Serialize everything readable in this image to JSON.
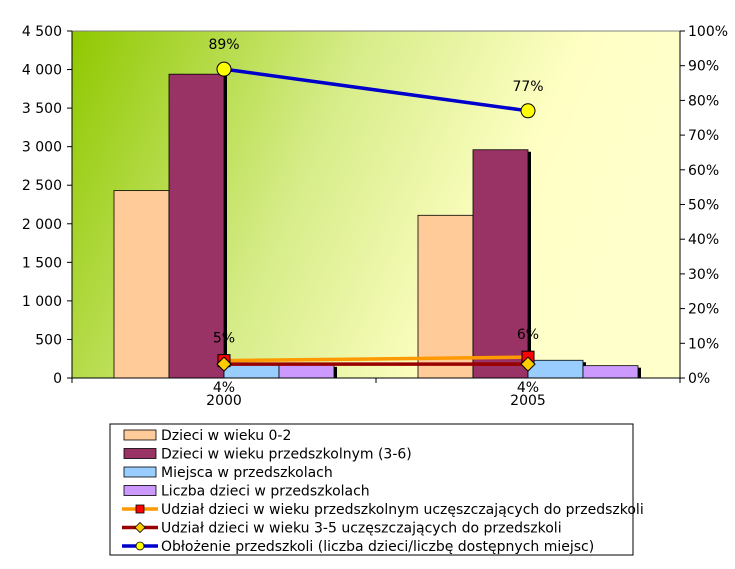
{
  "chart_data": {
    "type": "bar",
    "categories": [
      "2000",
      "2005"
    ],
    "ylim": [
      0,
      4500
    ],
    "y_ticks": [
      0,
      500,
      1000,
      1500,
      2000,
      2500,
      3000,
      3500,
      4000,
      4500
    ],
    "y_tick_labels": [
      "0",
      "500",
      "1 000",
      "1 500",
      "2 000",
      "2 500",
      "3 000",
      "3 500",
      "4 000",
      "4 500"
    ],
    "y2lim": [
      0,
      100
    ],
    "y2_ticks": [
      0,
      10,
      20,
      30,
      40,
      50,
      60,
      70,
      80,
      90,
      100
    ],
    "y2_tick_labels": [
      "0%",
      "10%",
      "20%",
      "30%",
      "40%",
      "50%",
      "60%",
      "70%",
      "80%",
      "90%",
      "100%"
    ],
    "legend_position": "bottom",
    "grid": false,
    "series": [
      {
        "name": "Dzieci w wieku 0-2",
        "kind": "bar",
        "color": "#FFCC99",
        "values": [
          2430,
          2110
        ]
      },
      {
        "name": "Dzieci w wieku przedszkolnym (3-6)",
        "kind": "bar",
        "color": "#993366",
        "values": [
          3940,
          2960
        ]
      },
      {
        "name": "Miejsca w przedszkolach",
        "kind": "bar",
        "color": "#99CCFF",
        "values": [
          190,
          230
        ]
      },
      {
        "name": "Liczba dzieci w przedszkolach",
        "kind": "bar",
        "color": "#CC99FF",
        "values": [
          170,
          160
        ]
      },
      {
        "name": "Udział dzieci w wieku przedszkolnym uczęszczających do przedszkoli",
        "kind": "line",
        "axis": "right",
        "color": "#FF9900",
        "marker_color": "#FF0000",
        "marker": "square",
        "values": [
          5,
          6
        ],
        "labels": [
          "5%",
          "6%"
        ]
      },
      {
        "name": "Udział dzieci w wieku 3-5 uczęszczających do przedszkoli",
        "kind": "line",
        "axis": "right",
        "color": "#990000",
        "marker_color": "#FFCC00",
        "marker": "diamond",
        "values": [
          4,
          4
        ],
        "labels": [
          "4%",
          "4%"
        ]
      },
      {
        "name": "Obłożenie przedszkoli (liczba dzieci/liczbę dostępnych miejsc)",
        "kind": "line",
        "axis": "right",
        "color": "#0000CC",
        "marker_color": "#FFFF00",
        "marker": "circle",
        "values": [
          89,
          77
        ],
        "labels": [
          "89%",
          "77%"
        ]
      }
    ]
  }
}
